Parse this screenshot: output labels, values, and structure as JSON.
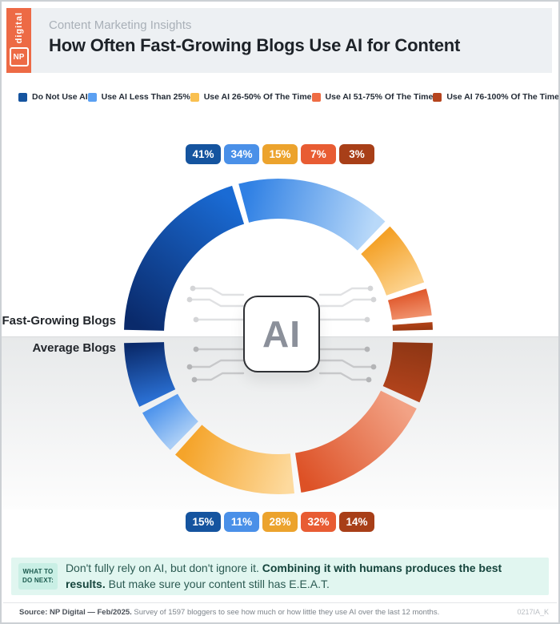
{
  "header": {
    "logo_np": "NP",
    "logo_digital": "digital",
    "eyebrow": "Content Marketing Insights",
    "title": "How Often Fast-Growing Blogs Use AI for Content"
  },
  "colors": {
    "brand_orange": "#ed6a45",
    "header_bg": "#edf0f3",
    "lower_bg": "#e7e9ea",
    "callout_bg": "#e1f6f0",
    "callout_tag_bg": "#c9efe5",
    "callout_text": "#2b5a52"
  },
  "legend": {
    "items": [
      {
        "label": "Do Not Use AI",
        "color": "#15549f"
      },
      {
        "label": "Use AI Less Than 25%",
        "color": "#5ba0f2"
      },
      {
        "label": "Use AI 26-50% Of The Time",
        "color": "#f9c050"
      },
      {
        "label": "Use AI 51-75% Of The Time",
        "color": "#ef6c44"
      },
      {
        "label": "Use AI 76-100% Of The Time",
        "color": "#b5441e"
      }
    ]
  },
  "chart_data": {
    "type": "pie",
    "subtype": "double-half-donut",
    "center_label": "AI",
    "categories": [
      "Do Not Use AI",
      "Use AI Less Than 25%",
      "Use AI 26-50% Of The Time",
      "Use AI 51-75% Of The Time",
      "Use AI 76-100% Of The Time"
    ],
    "series": [
      {
        "name": "Fast-Growing Blogs",
        "position": "top-half",
        "values": [
          41,
          34,
          15,
          7,
          3
        ],
        "segment_gradients": [
          [
            "#0a2a6b",
            "#1a6bd4"
          ],
          [
            "#2f80e4",
            "#b9d9f9"
          ],
          [
            "#f4a127",
            "#fcd28d"
          ],
          [
            "#e05a2e",
            "#f0916c"
          ],
          [
            "#b04217",
            "#9a3812"
          ]
        ]
      },
      {
        "name": "Average Blogs",
        "position": "bottom-half",
        "values": [
          15,
          11,
          28,
          32,
          14
        ],
        "segment_gradients": [
          [
            "#0a2a6b",
            "#2a6fd2"
          ],
          [
            "#5095ec",
            "#a9cdf6"
          ],
          [
            "#f5a42a",
            "#fdda9e"
          ],
          [
            "#dd5126",
            "#f2a285"
          ],
          [
            "#b2431c",
            "#8e3614"
          ]
        ]
      }
    ],
    "badge_colors": [
      "#15549f",
      "#4a90e8",
      "#eca32d",
      "#e85c33",
      "#a83f18"
    ],
    "legend_position": "top",
    "value_suffix": "%"
  },
  "callout": {
    "tag_line1": "WHAT TO",
    "tag_line2": "DO NEXT:",
    "text_pre": "Don't fully rely on AI, but don't ignore it. ",
    "text_bold": "Combining it with humans produces the best results.",
    "text_post": " But make sure your content still has E.E.A.T."
  },
  "footer": {
    "source_bold": "Source: NP Digital — Feb/2025.",
    "source_rest": " Survey of 1597 bloggers to see how much or how little they use AI over the last 12 months.",
    "code": "0217IA_K"
  }
}
